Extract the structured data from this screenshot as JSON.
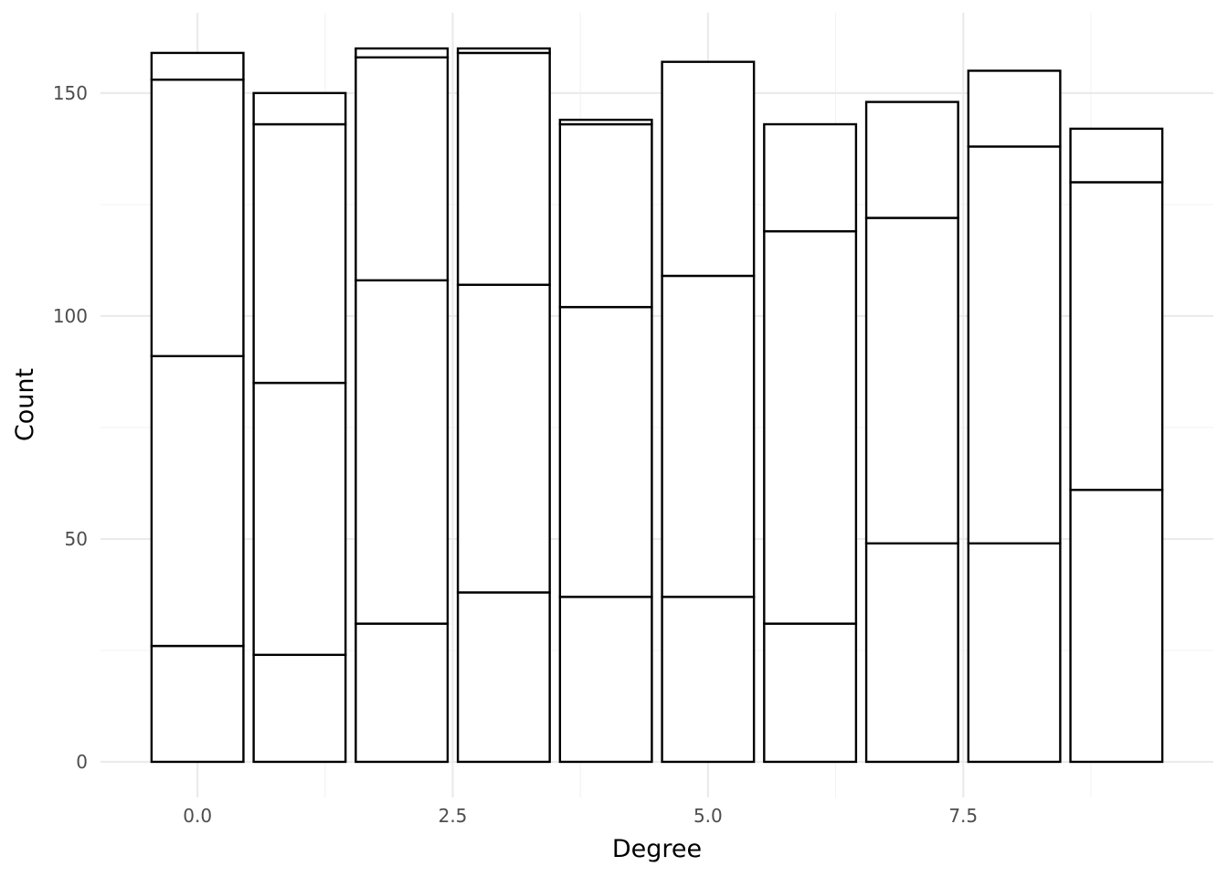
{
  "chart_data": {
    "type": "bar",
    "stacked": true,
    "title": "",
    "xlabel": "Degree",
    "ylabel": "Count",
    "x": [
      0,
      1,
      2,
      3,
      4,
      5,
      6,
      7,
      8,
      9
    ],
    "bar_width": 0.9,
    "xlim": [
      -0.95,
      9.95
    ],
    "ylim": [
      -8,
      168
    ],
    "x_ticks": [
      0.0,
      2.5,
      5.0,
      7.5
    ],
    "x_tick_labels": [
      "0.0",
      "2.5",
      "5.0",
      "7.5"
    ],
    "y_ticks": [
      0,
      50,
      100,
      150
    ],
    "y_tick_labels": [
      "0",
      "50",
      "100",
      "150"
    ],
    "grid": true,
    "legend": "none",
    "segment_boundaries": [
      [
        0,
        26,
        91,
        153,
        159
      ],
      [
        0,
        24,
        85,
        143,
        150
      ],
      [
        0,
        31,
        108,
        158,
        160
      ],
      [
        0,
        38,
        107,
        159,
        160
      ],
      [
        0,
        37,
        102,
        143,
        144
      ],
      [
        0,
        37,
        109,
        157
      ],
      [
        0,
        31,
        119,
        143
      ],
      [
        0,
        49,
        122,
        148
      ],
      [
        0,
        49,
        138,
        155
      ],
      [
        0,
        61,
        130,
        142
      ]
    ]
  }
}
